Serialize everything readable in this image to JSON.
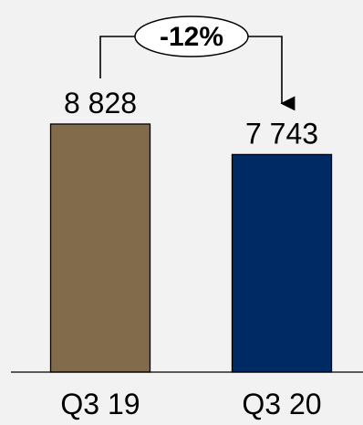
{
  "chart_data": {
    "type": "bar",
    "categories": [
      "Q3 19",
      "Q3 20"
    ],
    "values": [
      8828,
      7743
    ],
    "value_labels": [
      "8 828",
      "7 743"
    ],
    "colors": [
      "#826b4b",
      "#002a63"
    ],
    "change_label": "-12%",
    "ylim": [
      0,
      10000
    ],
    "grid": false,
    "title": "",
    "xlabel": "",
    "ylabel": ""
  }
}
